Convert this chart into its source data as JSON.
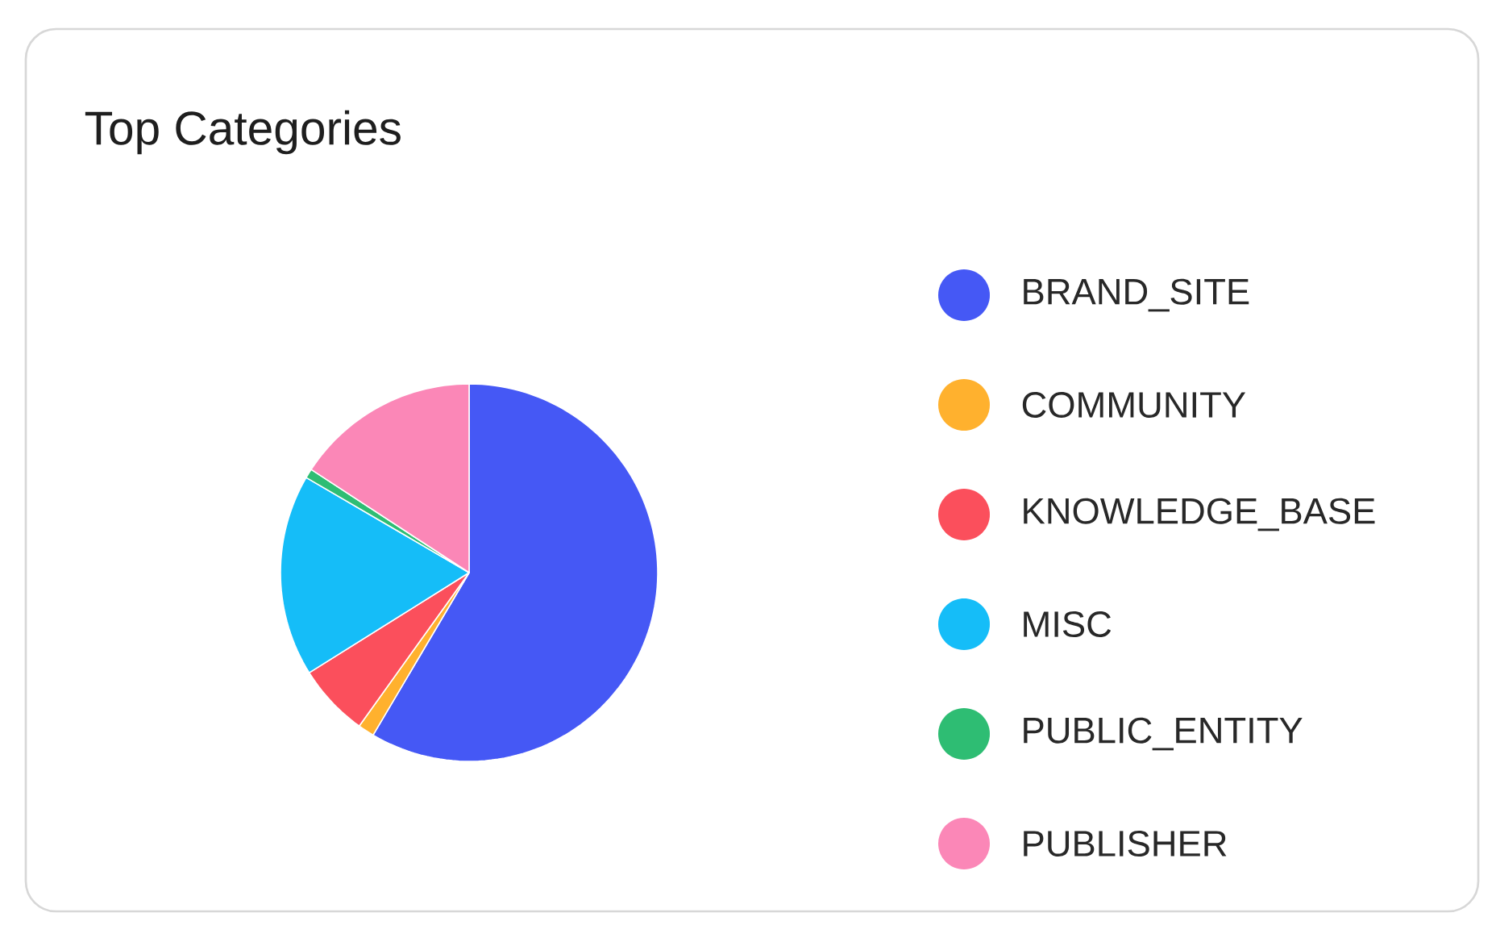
{
  "chart_data": {
    "type": "pie",
    "title": "Top Categories",
    "categories": [
      "BRAND_SITE",
      "COMMUNITY",
      "KNOWLEDGE_BASE",
      "MISC",
      "PUBLIC_ENTITY",
      "PUBLISHER"
    ],
    "values": [
      58.5,
      1.4,
      6.2,
      17.3,
      0.8,
      15.8
    ],
    "colors": [
      "#4558f5",
      "#ffb12e",
      "#fb4f5c",
      "#15bdf8",
      "#2ebd73",
      "#fb87b7"
    ],
    "legend": "right"
  }
}
